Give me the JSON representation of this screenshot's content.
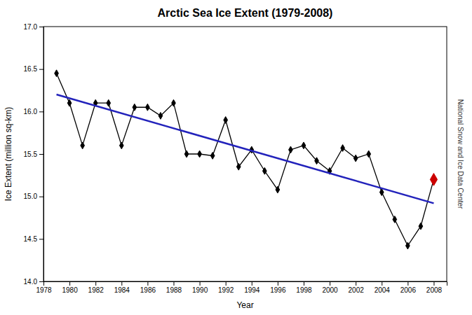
{
  "chart_data": {
    "type": "line",
    "title": "Arctic Sea Ice Extent (1979-2008)",
    "xlabel": "Year",
    "ylabel": "Ice Extent (million sq-km)",
    "annotations": [
      "National Snow and Ice Data Center"
    ],
    "x": [
      1979,
      1980,
      1981,
      1982,
      1983,
      1984,
      1985,
      1986,
      1987,
      1988,
      1989,
      1990,
      1991,
      1992,
      1993,
      1994,
      1995,
      1996,
      1997,
      1998,
      1999,
      2000,
      2001,
      2002,
      2003,
      2004,
      2005,
      2006,
      2007,
      2008
    ],
    "series": [
      {
        "type": "line",
        "color": "#000000",
        "marker": "diamond",
        "values": [
          16.45,
          16.1,
          15.6,
          16.1,
          16.1,
          15.6,
          16.05,
          16.05,
          15.95,
          16.1,
          15.5,
          15.5,
          15.48,
          15.9,
          15.35,
          15.55,
          15.3,
          15.08,
          15.55,
          15.6,
          15.42,
          15.3,
          15.57,
          15.45,
          15.5,
          15.05,
          14.73,
          14.42,
          14.65,
          15.2
        ]
      },
      {
        "type": "line",
        "color": "#2222bb",
        "x": [
          1979,
          2008
        ],
        "values": [
          16.2,
          14.92
        ]
      },
      {
        "type": "scatter",
        "color": "#cc0000",
        "marker": "diamond",
        "x": [
          2008
        ],
        "values": [
          15.2
        ]
      }
    ],
    "xlim": [
      1978,
      2009
    ],
    "ylim": [
      14.0,
      17.0
    ],
    "xticks": [
      1978,
      1980,
      1982,
      1984,
      1986,
      1988,
      1990,
      1992,
      1994,
      1996,
      1998,
      2000,
      2002,
      2004,
      2006,
      2008
    ],
    "yticks": [
      {
        "value": 14.0,
        "label": "14.0"
      },
      {
        "value": 14.5,
        "label": "14.5"
      },
      {
        "value": 15.0,
        "label": "15.0"
      },
      {
        "value": 15.5,
        "label": "15.5"
      },
      {
        "value": 16.0,
        "label": "16.0"
      },
      {
        "value": 16.5,
        "label": "16.5"
      },
      {
        "value": 17.0,
        "label": "17.0"
      }
    ],
    "grid": false
  }
}
